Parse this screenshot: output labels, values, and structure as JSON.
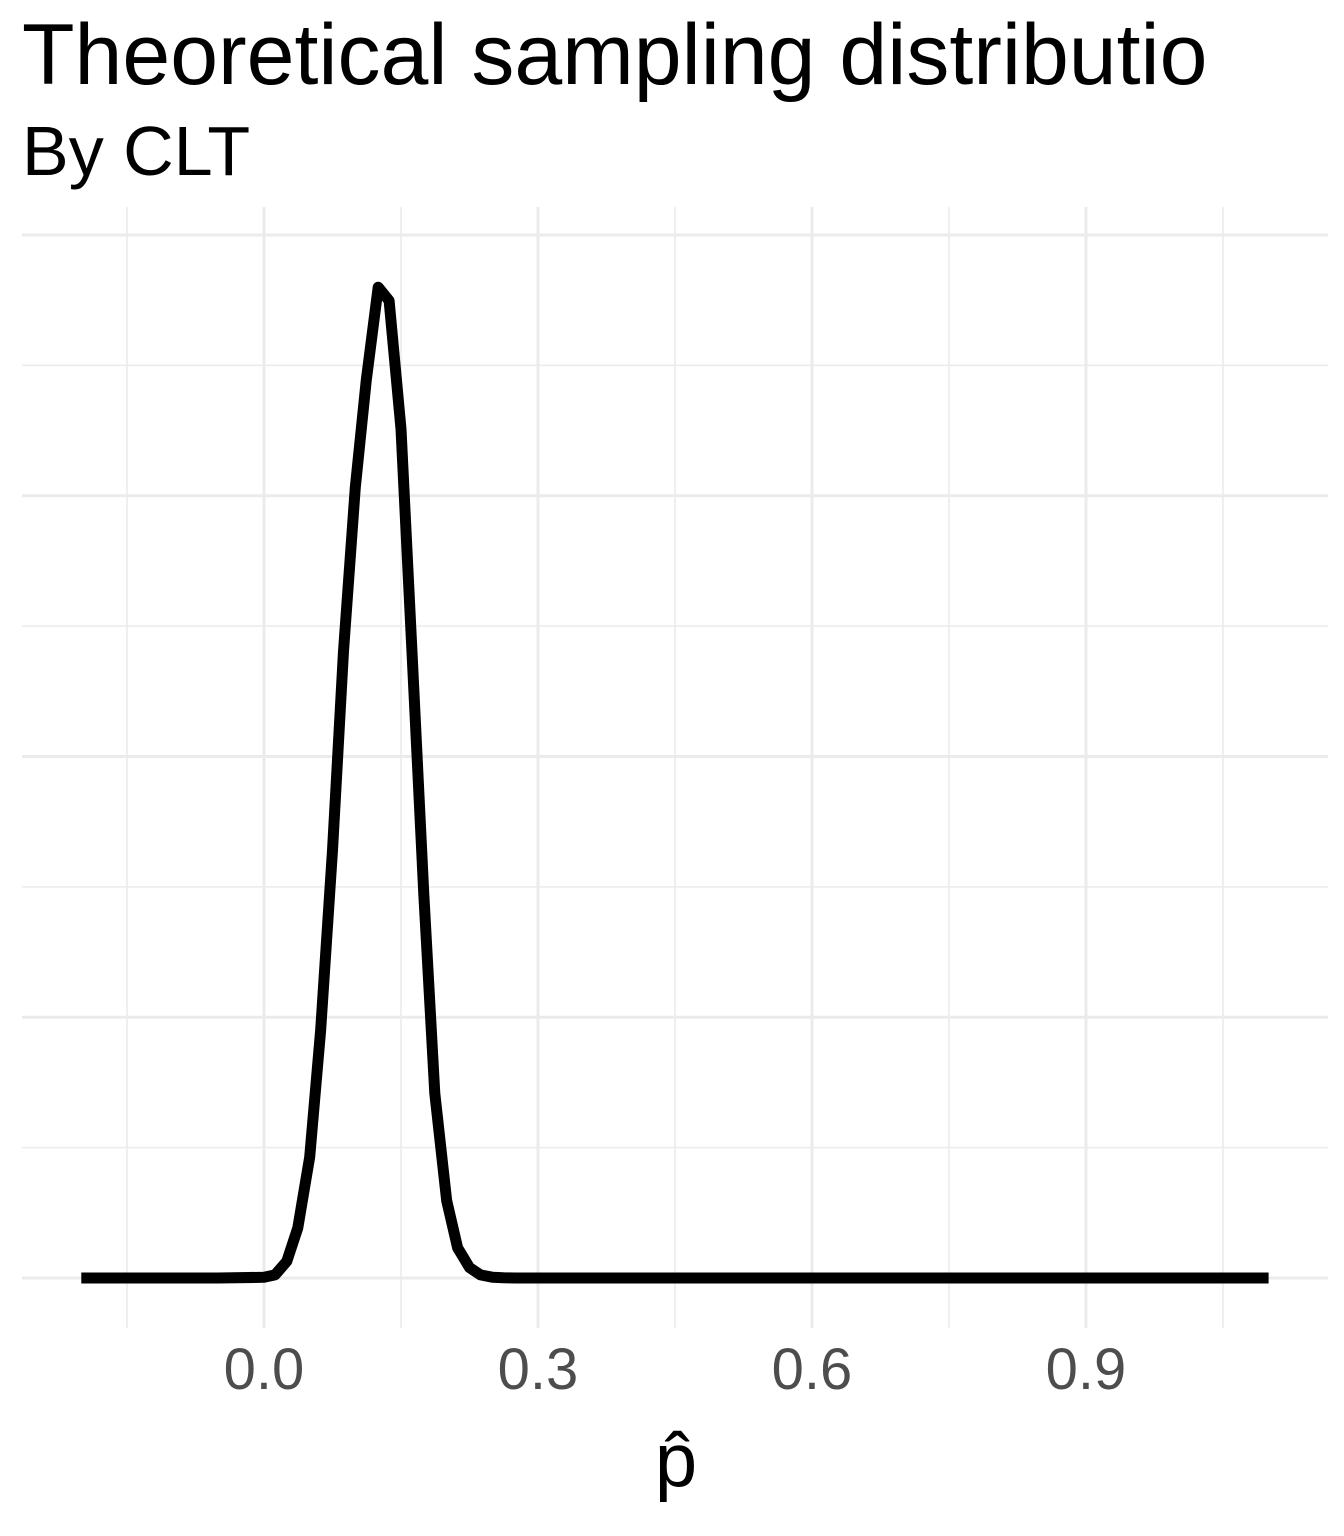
{
  "chart_data": {
    "type": "line",
    "title": "Theoretical sampling distributio",
    "subtitle": "By CLT",
    "xlabel": "p̂",
    "ylabel": "",
    "xlim": [
      -0.15,
      1.16
    ],
    "ylim": [
      -0.05,
      1.0
    ],
    "x_ticks": [
      0.0,
      0.3,
      0.6,
      0.9
    ],
    "x_tick_labels": [
      "0.0",
      "0.3",
      "0.6",
      "0.9"
    ],
    "x_minor_gridlines": [
      -0.15,
      0.15,
      0.45,
      0.75,
      1.05
    ],
    "y_major_gridlines": [
      0.0,
      0.25,
      0.5,
      0.75,
      1.0
    ],
    "y_minor_gridlines": [
      0.125,
      0.375,
      0.625,
      0.875
    ],
    "y_axis_text_shown": false,
    "grid": true,
    "legend": "none",
    "line_color": "#000000",
    "grid_color": "#ebebeb",
    "series": [
      {
        "x": [
          -0.2,
          -0.15,
          -0.1,
          -0.05,
          0.0,
          0.012,
          0.025,
          0.037,
          0.05,
          0.062,
          0.075,
          0.087,
          0.1,
          0.112,
          0.125,
          0.137,
          0.15,
          0.162,
          0.175,
          0.187,
          0.2,
          0.212,
          0.225,
          0.237,
          0.25,
          0.262,
          0.275,
          0.3,
          0.4,
          0.6,
          0.8,
          1.0,
          1.1
        ],
        "y": [
          0.0,
          0.0,
          0.0,
          0.0,
          0.0007,
          0.003,
          0.016,
          0.048,
          0.116,
          0.237,
          0.41,
          0.601,
          0.758,
          0.861,
          0.95,
          0.937,
          0.814,
          0.6,
          0.368,
          0.177,
          0.074,
          0.029,
          0.01,
          0.003,
          0.0008,
          0.0002,
          0.0,
          0.0,
          0.0,
          0.0,
          0.0,
          0.0,
          0.0
        ]
      }
    ]
  }
}
